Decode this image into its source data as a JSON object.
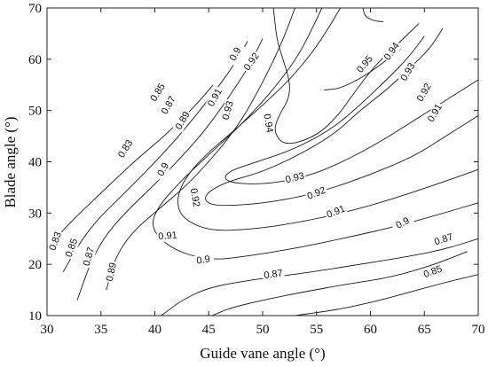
{
  "chart_data": {
    "type": "contour",
    "xlabel": "Guide vane angle (°)",
    "ylabel": "Blade angle (°)",
    "xlim": [
      30,
      70
    ],
    "ylim": [
      10,
      70
    ],
    "xticks": [
      "30",
      "35",
      "40",
      "45",
      "50",
      "55",
      "60",
      "65",
      "70"
    ],
    "yticks": [
      "10",
      "20",
      "30",
      "40",
      "50",
      "60",
      "70"
    ],
    "grid": false,
    "contours": [
      {
        "level": "0.83",
        "points": [
          [
            30.0,
            23.0
          ],
          [
            31.2,
            26.0
          ],
          [
            32.8,
            29.5
          ],
          [
            34.8,
            33.5
          ],
          [
            36.8,
            37.5
          ],
          [
            38.6,
            41.0
          ],
          [
            40.6,
            44.5
          ],
          [
            42.6,
            48.5
          ],
          [
            44.2,
            52.0
          ],
          [
            45.4,
            55.0
          ]
        ],
        "labels": [
          {
            "text": "0.83",
            "x": 30.8,
            "y": 24.5,
            "angle": -70
          },
          {
            "text": "0.83",
            "x": 37.3,
            "y": 42.5,
            "angle": -58
          }
        ]
      },
      {
        "level": "0.85",
        "points": [
          [
            31.5,
            18.5
          ],
          [
            32.3,
            21.5
          ],
          [
            33.3,
            25.0
          ],
          [
            34.8,
            29.0
          ],
          [
            37.0,
            33.5
          ],
          [
            39.6,
            39.0
          ],
          [
            41.8,
            44.0
          ],
          [
            43.6,
            48.5
          ],
          [
            45.3,
            53.0
          ],
          [
            46.7,
            57.0
          ],
          [
            47.8,
            60.5
          ],
          [
            48.6,
            63.5
          ]
        ],
        "labels": [
          {
            "text": "0.85",
            "x": 32.3,
            "y": 23.2,
            "angle": -70
          },
          {
            "text": "0.85",
            "x": 40.3,
            "y": 53.5,
            "angle": -58
          }
        ]
      },
      {
        "level": "0.87",
        "points": [
          [
            32.8,
            13.0
          ],
          [
            33.3,
            16.0
          ],
          [
            34.0,
            20.0
          ],
          [
            35.2,
            25.0
          ],
          [
            37.2,
            30.0
          ],
          [
            40.2,
            36.0
          ],
          [
            42.5,
            41.0
          ],
          [
            44.4,
            45.5
          ],
          [
            46.0,
            50.0
          ],
          [
            47.3,
            54.0
          ],
          [
            48.4,
            57.5
          ],
          [
            49.3,
            61.0
          ],
          [
            50.0,
            64.0
          ]
        ],
        "labels": [
          {
            "text": "0.87",
            "x": 33.9,
            "y": 21.5,
            "angle": -74
          },
          {
            "text": "0.87",
            "x": 41.3,
            "y": 51.0,
            "angle": -60
          }
        ]
      },
      {
        "level": "0.89",
        "points": [
          [
            35.5,
            15.0
          ],
          [
            35.9,
            18.0
          ],
          [
            36.5,
            22.0
          ],
          [
            38.0,
            26.5
          ],
          [
            40.5,
            31.0
          ],
          [
            43.0,
            35.5
          ],
          [
            45.0,
            40.0
          ],
          [
            46.8,
            44.5
          ],
          [
            48.3,
            49.0
          ],
          [
            49.5,
            53.5
          ],
          [
            50.6,
            58.0
          ],
          [
            51.5,
            62.0
          ],
          [
            52.3,
            66.0
          ],
          [
            53.0,
            70.0
          ]
        ],
        "labels": [
          {
            "text": "0.89",
            "x": 36.0,
            "y": 18.5,
            "angle": -78
          },
          {
            "text": "0.89",
            "x": 42.6,
            "y": 48.0,
            "angle": -60
          }
        ]
      },
      {
        "level": "0.9",
        "points": [
          [
            55.5,
            70.0
          ],
          [
            54.6,
            66.0
          ],
          [
            53.4,
            61.0
          ],
          [
            51.7,
            56.0
          ],
          [
            49.7,
            51.0
          ],
          [
            47.4,
            46.0
          ],
          [
            44.8,
            41.0
          ],
          [
            42.3,
            36.0
          ],
          [
            40.2,
            31.0
          ],
          [
            39.6,
            27.0
          ],
          [
            41.5,
            23.0
          ],
          [
            45.0,
            20.7
          ],
          [
            49.0,
            21.7
          ],
          [
            53.5,
            23.3
          ],
          [
            58.0,
            25.3
          ],
          [
            62.0,
            27.2
          ],
          [
            66.0,
            29.5
          ],
          [
            70.0,
            32.0
          ]
        ],
        "labels": [
          {
            "text": "0.9",
            "x": 40.8,
            "y": 38.5,
            "angle": -62
          },
          {
            "text": "0.9",
            "x": 47.5,
            "y": 61.0,
            "angle": -62
          },
          {
            "text": "0.9",
            "x": 44.5,
            "y": 20.8,
            "angle": -8
          },
          {
            "text": "0.9",
            "x": 63.0,
            "y": 28.0,
            "angle": -28
          }
        ]
      },
      {
        "level": "0.91",
        "points": [
          [
            57.2,
            70.0
          ],
          [
            56.1,
            66.0
          ],
          [
            54.5,
            61.0
          ],
          [
            52.5,
            56.0
          ],
          [
            50.0,
            51.0
          ],
          [
            47.3,
            46.0
          ],
          [
            44.5,
            41.0
          ],
          [
            42.7,
            36.5
          ],
          [
            42.0,
            32.5
          ],
          [
            42.5,
            29.0
          ],
          [
            45.0,
            26.5
          ],
          [
            49.0,
            26.8
          ],
          [
            53.5,
            28.2
          ],
          [
            58.0,
            30.3
          ],
          [
            62.0,
            32.7
          ],
          [
            66.0,
            35.5
          ],
          [
            70.0,
            38.5
          ]
        ],
        "labels": [
          {
            "text": "0.91",
            "x": 41.2,
            "y": 25.5,
            "angle": -5
          },
          {
            "text": "0.91",
            "x": 45.6,
            "y": 52.5,
            "angle": -60
          },
          {
            "text": "0.91",
            "x": 56.8,
            "y": 30.2,
            "angle": -22
          },
          {
            "text": "0.91",
            "x": 66.0,
            "y": 49.5,
            "angle": -60
          }
        ]
      },
      {
        "level": "0.92",
        "points": [
          [
            66.7,
            66.0
          ],
          [
            65.5,
            62.0
          ],
          [
            63.5,
            58.0
          ],
          [
            61.5,
            54.0
          ],
          [
            59.0,
            50.0
          ],
          [
            57.0,
            46.0
          ],
          [
            54.0,
            42.0
          ],
          [
            50.0,
            38.0
          ],
          [
            46.5,
            36.0
          ],
          [
            44.5,
            33.5
          ],
          [
            45.0,
            31.5
          ],
          [
            48.0,
            31.5
          ],
          [
            52.0,
            32.5
          ],
          [
            56.0,
            34.5
          ],
          [
            60.0,
            37.5
          ],
          [
            64.0,
            41.0
          ],
          [
            67.0,
            45.0
          ],
          [
            70.0,
            49.0
          ]
        ],
        "labels": [
          {
            "text": "0.92",
            "x": 43.7,
            "y": 33.0,
            "angle": 80
          },
          {
            "text": "0.92",
            "x": 55.0,
            "y": 33.8,
            "angle": -22
          },
          {
            "text": "0.92",
            "x": 49.0,
            "y": 59.5,
            "angle": -55
          },
          {
            "text": "0.92",
            "x": 65.0,
            "y": 53.5,
            "angle": -60
          }
        ]
      },
      {
        "level": "0.93",
        "points": [
          [
            65.0,
            64.5
          ],
          [
            63.6,
            60.5
          ],
          [
            61.5,
            56.0
          ],
          [
            59.0,
            51.0
          ],
          [
            56.5,
            46.5
          ],
          [
            53.0,
            42.5
          ],
          [
            49.5,
            40.0
          ],
          [
            46.6,
            38.0
          ],
          [
            46.5,
            36.0
          ],
          [
            50.0,
            35.5
          ],
          [
            54.0,
            37.0
          ],
          [
            57.5,
            40.0
          ],
          [
            61.0,
            44.0
          ],
          [
            64.0,
            48.0
          ],
          [
            67.0,
            52.0
          ],
          [
            70.0,
            56.0
          ]
        ],
        "labels": [
          {
            "text": "0.93",
            "x": 46.8,
            "y": 50.0,
            "angle": -75
          },
          {
            "text": "0.93",
            "x": 53.0,
            "y": 36.8,
            "angle": -14
          },
          {
            "text": "0.93",
            "x": 63.5,
            "y": 57.5,
            "angle": -60
          }
        ]
      },
      {
        "level": "0.94",
        "points": [
          [
            64.5,
            67.0
          ],
          [
            62.8,
            63.5
          ],
          [
            60.5,
            59.0
          ],
          [
            58.5,
            53.5
          ],
          [
            57.0,
            49.0
          ],
          [
            55.0,
            45.0
          ],
          [
            52.0,
            43.0
          ],
          [
            51.0,
            46.0
          ],
          [
            51.5,
            49.0
          ],
          [
            52.5,
            52.5
          ],
          [
            52.5,
            56.0
          ],
          [
            51.8,
            60.5
          ],
          [
            51.3,
            64.0
          ],
          [
            51.0,
            70.0
          ]
        ],
        "labels": [
          {
            "text": "0.94",
            "x": 50.5,
            "y": 47.5,
            "angle": 80
          },
          {
            "text": "0.94",
            "x": 62.0,
            "y": 61.5,
            "angle": -55
          }
        ]
      },
      {
        "level": "0.95",
        "points": [
          [
            55.7,
            54.0
          ],
          [
            57.2,
            54.3
          ],
          [
            59.3,
            56.5
          ],
          [
            61.0,
            59.0
          ],
          [
            62.8,
            62.0
          ]
        ],
        "labels": [
          {
            "text": "0.95",
            "x": 59.5,
            "y": 59.0,
            "angle": -50
          }
        ]
      },
      {
        "level": "0.95-top",
        "points": [
          [
            59.3,
            70.0
          ],
          [
            59.5,
            68.3
          ],
          [
            60.3,
            67.5
          ],
          [
            61.2,
            67.3
          ]
        ],
        "labels": []
      }
    ],
    "lower_contours": [
      {
        "level": "0.87",
        "points": [
          [
            40.6,
            10.0
          ],
          [
            42.5,
            13.0
          ],
          [
            45.0,
            15.5
          ],
          [
            49.0,
            17.0
          ],
          [
            54.0,
            18.3
          ],
          [
            59.0,
            20.0
          ],
          [
            63.5,
            21.5
          ],
          [
            67.0,
            23.0
          ],
          [
            70.0,
            25.0
          ]
        ],
        "labels": [
          {
            "text": "0.87",
            "x": 66.8,
            "y": 24.8,
            "angle": -18
          },
          {
            "text": "0.87",
            "x": 51.0,
            "y": 18.0,
            "angle": -8
          }
        ]
      },
      {
        "level": "0.85",
        "points": [
          [
            45.3,
            10.0
          ],
          [
            47.0,
            11.5
          ],
          [
            50.0,
            13.0
          ],
          [
            54.0,
            14.7
          ],
          [
            58.0,
            16.2
          ],
          [
            62.0,
            17.5
          ],
          [
            66.0,
            20.0
          ],
          [
            69.0,
            22.5
          ]
        ],
        "labels": [
          {
            "text": "0.85",
            "x": 65.8,
            "y": 18.5,
            "angle": -20
          }
        ]
      },
      {
        "level": "0.83",
        "points": [
          [
            53.0,
            10.0
          ],
          [
            56.5,
            11.0
          ],
          [
            60.0,
            12.5
          ],
          [
            63.5,
            14.5
          ],
          [
            67.0,
            16.5
          ],
          [
            70.0,
            18.0
          ]
        ],
        "labels": []
      }
    ]
  }
}
